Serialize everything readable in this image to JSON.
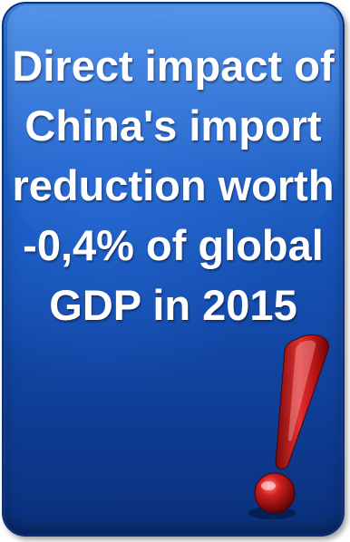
{
  "card": {
    "headline_lines": [
      "Direct impact of",
      "China's import",
      "reduction worth",
      "-0,4% of global",
      "GDP in 2015"
    ],
    "icon": "exclamation-mark-icon",
    "colors": {
      "background": "#1a5cc4",
      "text": "#ffffff",
      "icon": "#cc1a1a"
    }
  }
}
